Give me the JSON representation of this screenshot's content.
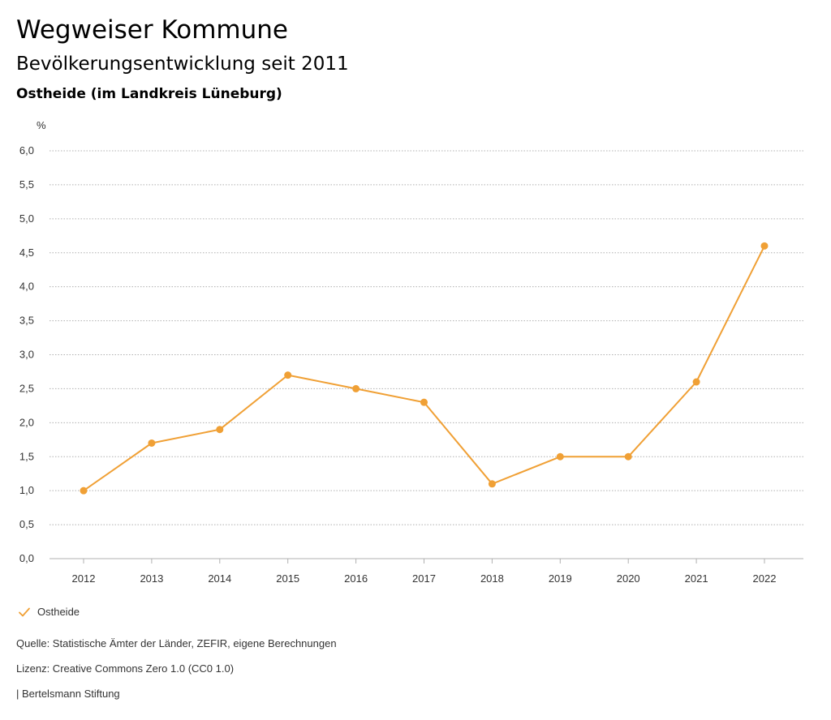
{
  "header": {
    "title": "Wegweiser Kommune",
    "subtitle": "Bevölkerungsentwicklung seit 2011",
    "region": "Ostheide (im Landkreis Lüneburg)"
  },
  "legend": {
    "label": "Ostheide",
    "icon": "checkmark-icon"
  },
  "footer": {
    "source": "Quelle: Statistische Ämter der Länder, ZEFIR, eigene Berechnungen",
    "license": "Lizenz: Creative Commons Zero 1.0 (CC0 1.0)",
    "publisher": "| Bertelsmann Stiftung"
  },
  "colors": {
    "series": "#F0A035",
    "grid": "#B0B0B0",
    "text": "#000000"
  },
  "chart_data": {
    "type": "line",
    "title": "Bevölkerungsentwicklung seit 2011",
    "ylabel": "%",
    "xlabel": "",
    "ylim": [
      0,
      6
    ],
    "ytick_step": 0.5,
    "ytick_labels": [
      "0,0",
      "0,5",
      "1,0",
      "1,5",
      "2,0",
      "2,5",
      "3,0",
      "3,5",
      "4,0",
      "4,5",
      "5,0",
      "5,5",
      "6,0"
    ],
    "categories": [
      "2012",
      "2013",
      "2014",
      "2015",
      "2016",
      "2017",
      "2018",
      "2019",
      "2020",
      "2021",
      "2022"
    ],
    "series": [
      {
        "name": "Ostheide",
        "values": [
          1.0,
          1.7,
          1.9,
          2.7,
          2.5,
          2.3,
          1.1,
          1.5,
          1.5,
          2.6,
          4.6
        ]
      }
    ],
    "grid": true,
    "legend_position": "bottom-left"
  }
}
